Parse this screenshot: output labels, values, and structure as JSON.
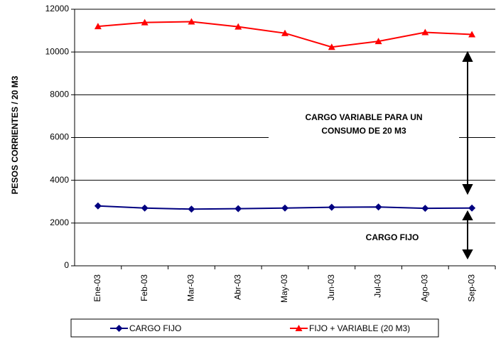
{
  "chart_data": {
    "type": "line",
    "y_label": "PESOS CORRIENTES / 20 M3",
    "categories": [
      "Ene-03",
      "Feb-03",
      "Mar-03",
      "Abr-03",
      "May-03",
      "Jun-03",
      "Jul-03",
      "Ago-03",
      "Sep-03"
    ],
    "series": [
      {
        "name": "CARGO FIJO",
        "color": "#000080",
        "marker": "diamond",
        "values": [
          2800,
          2700,
          2650,
          2670,
          2700,
          2740,
          2750,
          2690,
          2700
        ]
      },
      {
        "name": "FIJO + VARIABLE (20 M3)",
        "color": "#ff0000",
        "marker": "triangle",
        "values": [
          11200,
          11380,
          11420,
          11180,
          10880,
          10230,
          10500,
          10920,
          10820
        ]
      }
    ],
    "ylim": [
      0,
      12000
    ],
    "yticks": [
      0,
      2000,
      4000,
      6000,
      8000,
      10000,
      12000
    ],
    "grid": true,
    "annotations": [
      "CARGO  VARIABLE PARA UN",
      "CONSUMO DE 20 M3",
      "CARGO FIJO"
    ]
  }
}
